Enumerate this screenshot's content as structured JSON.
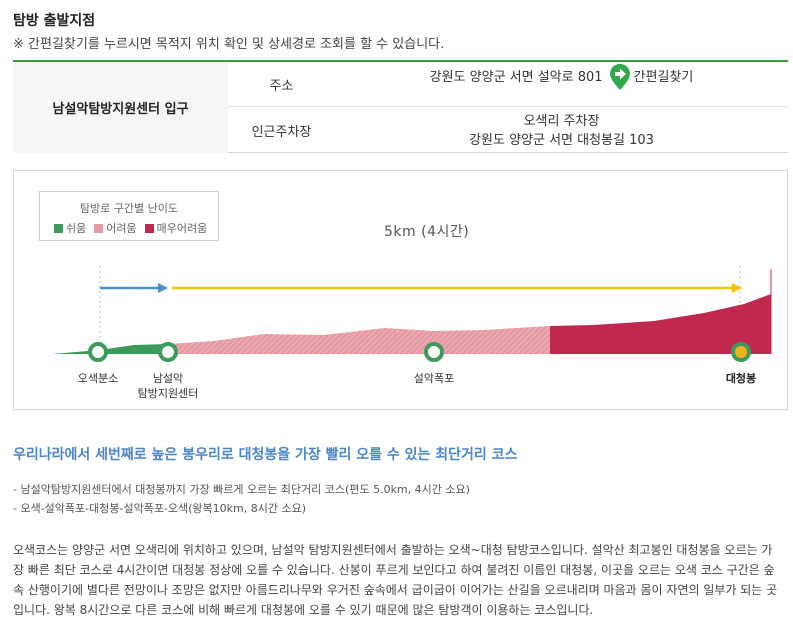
{
  "header": {
    "title": "탐방 출발지점",
    "note": "※ 간편길찾기를 누르시면 목적지 위치 확인 및 상세경로 조회를 할 수 있습니다."
  },
  "info": {
    "place_name": "남설악탐방지원센터 입구",
    "address_label": "주소",
    "address_value": "강원도 양양군 서면 설악로 801",
    "nav_button_label": "간편길찾기",
    "parking_label": "인근주차장",
    "parking_name": "오색리 주차장",
    "parking_address": "강원도 양양군 서면 대청봉길 103"
  },
  "course_map": {
    "legend_title": "탐방로 구간별 난이도",
    "legend": [
      {
        "label": "쉬움",
        "color": "#3e9a5a"
      },
      {
        "label": "어려움",
        "color": "#e59aa3"
      },
      {
        "label": "매우어려움",
        "color": "#c0284f"
      }
    ],
    "total": "5km (4시간)",
    "stops": [
      {
        "label": "오색분소",
        "position": 0.0
      },
      {
        "label": "남설악\n탐방지원센터",
        "position": 0.1
      },
      {
        "label": "설악폭포",
        "position": 0.52
      },
      {
        "label": "대청봉",
        "position": 1.0
      }
    ],
    "colors": {
      "easy": "#3e9a5a",
      "hard": "#e59aa3",
      "very_hard": "#c0284f",
      "arrow_blue": "#4a8fc8",
      "arrow_yellow": "#f2c20f"
    }
  },
  "course_desc": {
    "headline": "우리나라에서 세번째로 높은 봉우리로 대청봉을 가장 빨리 오를 수 있는 최단거리 코스",
    "bullets": [
      "- 남설악탐방지원센터에서 대청봉까지 가장 빠르게 오르는 최단거리 코스(편도 5.0km, 4시간 소요)",
      "- 오색-설악폭포-대청봉-설악폭포-오색(왕복10km, 8시간 소요)"
    ],
    "paragraph": [
      "오색코스는 양양군 서면 오색리에 위치하고 있으며, 남설악 탐방지원센터에서 출발하는 오색~대청 탐방코스입니다. 설악산 최고봉인 대청봉을 오르는 가",
      "장 빠른 최단 코스로 4시간이면 대청봉 정상에 오를 수 있습니다. 산봉이 푸르게 보인다고 하여 불려진 이름인 대청봉, 이곳을 오르는 오색 코스 구간은 숲",
      "속 산행이기에 별다른 전망이나 조망은 없지만 아름드리나무와 우거진 숲속에서 굽이굽이 이어가는 산길을 오르내리며 마음과 몸이 자연의 일부가 되는 곳",
      "입니다. 왕복 8시간으로 다른 코스에 비해 빠르게 대청봉에 오를 수 있기 때문에 많은 탐방객이 이용하는 코스입니다."
    ]
  }
}
